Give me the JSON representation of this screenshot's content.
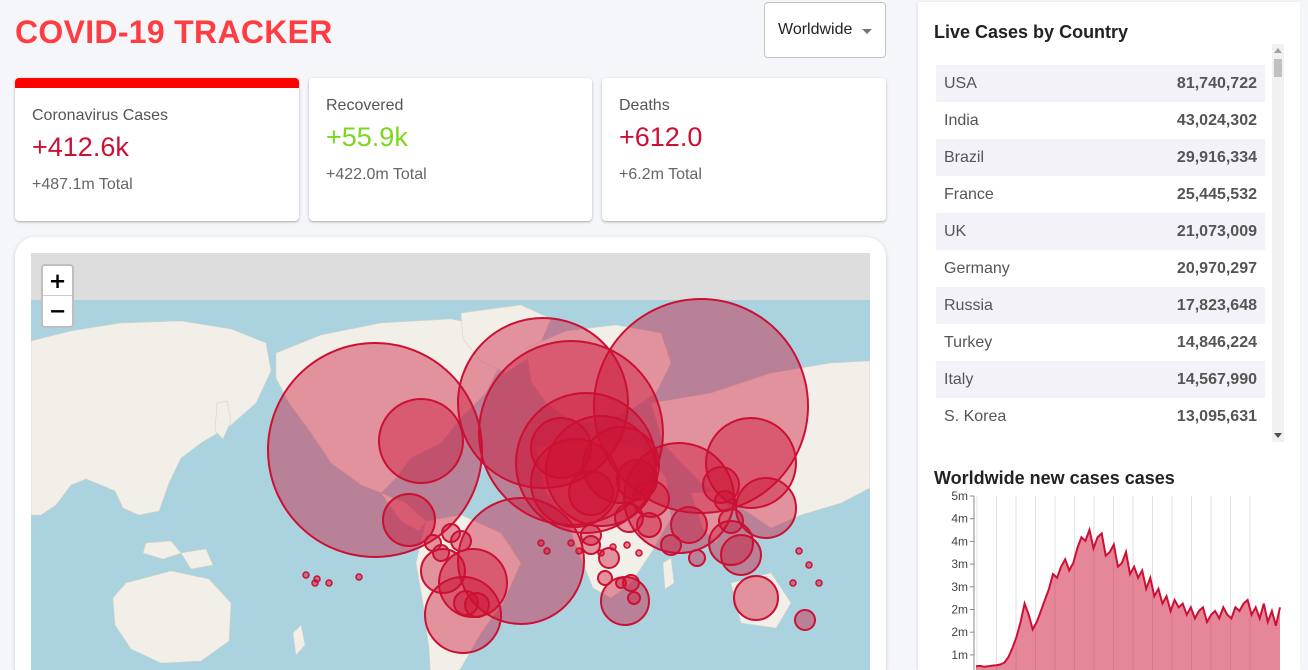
{
  "header": {
    "title": "COVID-19 TRACKER",
    "dropdown_value": "Worldwide"
  },
  "cards": [
    {
      "label": "Coronavirus Cases",
      "value": "+412.6k",
      "total": "+487.1m Total",
      "color": "#cc1034",
      "active": true
    },
    {
      "label": "Recovered",
      "value": "+55.9k",
      "total": "+422.0m Total",
      "color": "#7dd71d"
    },
    {
      "label": "Deaths",
      "value": "+612.0",
      "total": "+6.2m Total",
      "color": "#cc1034"
    }
  ],
  "map": {
    "zoom_in": "+",
    "zoom_out": "−",
    "circle_color": "#cc1034"
  },
  "sidebar": {
    "table_title": "Live Cases by Country",
    "countries": [
      {
        "name": "USA",
        "cases": "81,740,722"
      },
      {
        "name": "India",
        "cases": "43,024,302"
      },
      {
        "name": "Brazil",
        "cases": "29,916,334"
      },
      {
        "name": "France",
        "cases": "25,445,532"
      },
      {
        "name": "UK",
        "cases": "21,073,009"
      },
      {
        "name": "Germany",
        "cases": "20,970,297"
      },
      {
        "name": "Russia",
        "cases": "17,823,648"
      },
      {
        "name": "Turkey",
        "cases": "14,846,224"
      },
      {
        "name": "Italy",
        "cases": "14,567,990"
      },
      {
        "name": "S. Korea",
        "cases": "13,095,631"
      }
    ],
    "chart_title": "Worldwide new cases cases"
  },
  "chart_data": {
    "type": "area",
    "title": "Worldwide new cases cases",
    "y_ticks": [
      "5m",
      "4m",
      "4m",
      "3m",
      "3m",
      "2m",
      "2m",
      "1m"
    ],
    "ylim": [
      0,
      5000000
    ],
    "color": "#cc1034",
    "values": [
      100000,
      110000,
      90000,
      100000,
      120000,
      130000,
      150000,
      200000,
      350000,
      600000,
      900000,
      1300000,
      1800000,
      1500000,
      1100000,
      1300000,
      1600000,
      1900000,
      2200000,
      2600000,
      2500000,
      2800000,
      3000000,
      2700000,
      2900000,
      3300000,
      3600000,
      3500000,
      3800000,
      3300000,
      3600000,
      3700000,
      3100000,
      3200000,
      3400000,
      2800000,
      2900000,
      3200000,
      2600000,
      2800000,
      2500000,
      2700000,
      2200000,
      2500000,
      2000000,
      2200000,
      1800000,
      2000000,
      1600000,
      1900000,
      1700000,
      1800000,
      1500000,
      1700000,
      1400000,
      1600000,
      1700000,
      1300000,
      1500000,
      1600000,
      1400000,
      1700000,
      1500000,
      1400000,
      1700000,
      1600000,
      1800000,
      1900000,
      1500000,
      1700000,
      1400000,
      1800000,
      1300000,
      1600000,
      1200000,
      1700000
    ]
  }
}
